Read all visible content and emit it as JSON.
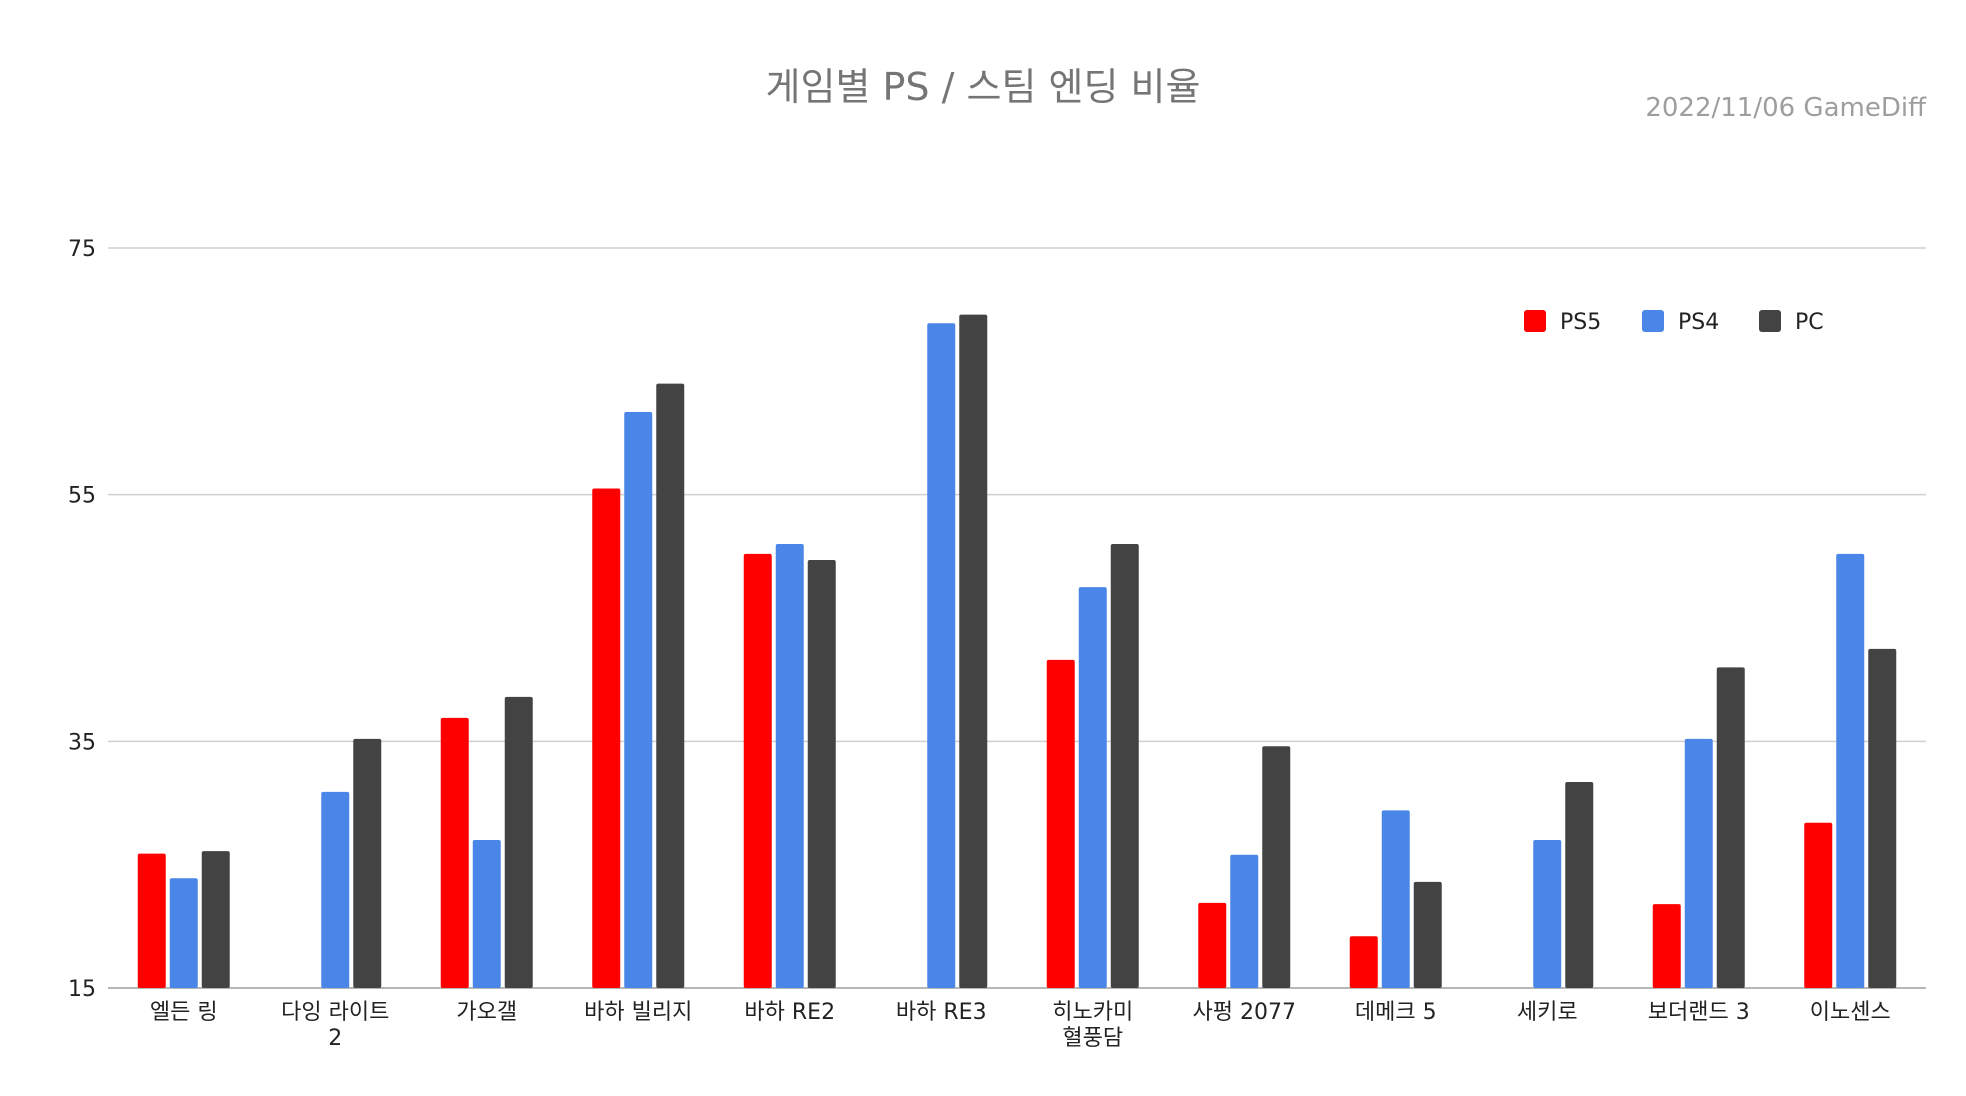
{
  "chart_data": {
    "type": "bar",
    "title": "게임별 PS / 스팀 엔딩 비율",
    "source_note": "2022/11/06  GameDiff",
    "categories": [
      [
        "엘든 링"
      ],
      [
        "다잉 라이트",
        "2"
      ],
      [
        "가오갤"
      ],
      [
        "바하 빌리지"
      ],
      [
        "바하 RE2"
      ],
      [
        "바하 RE3"
      ],
      [
        "히노카미",
        "혈풍담"
      ],
      [
        "사펑 2077"
      ],
      [
        "데메크 5"
      ],
      [
        "세키로"
      ],
      [
        "보더랜드 3"
      ],
      [
        "이노센스"
      ]
    ],
    "series": [
      {
        "name": "PS5",
        "color": "#ff0000",
        "values": [
          25.9,
          null,
          36.9,
          55.5,
          50.2,
          null,
          41.6,
          21.9,
          19.2,
          null,
          21.8,
          28.4
        ]
      },
      {
        "name": "PS4",
        "color": "#4a86e8",
        "values": [
          23.9,
          30.9,
          27.0,
          61.7,
          51.0,
          68.9,
          47.5,
          25.8,
          29.4,
          27.0,
          35.2,
          50.2
        ]
      },
      {
        "name": "PC",
        "color": "#434343",
        "values": [
          26.1,
          35.2,
          38.6,
          64.0,
          49.7,
          69.6,
          51.0,
          34.6,
          23.6,
          31.7,
          41.0,
          42.5
        ]
      }
    ],
    "ylim": [
      15,
      75
    ],
    "yticks": [
      15,
      35,
      55,
      75
    ],
    "grid": true,
    "legend_position": "top-right"
  }
}
